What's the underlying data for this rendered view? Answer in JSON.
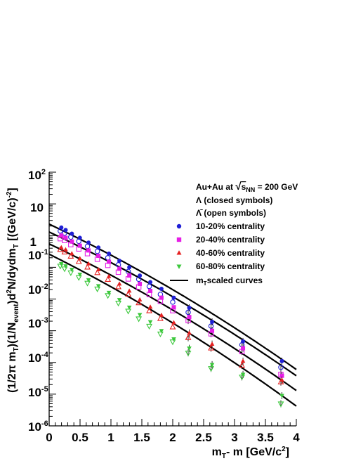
{
  "chart_data": {
    "type": "scatter",
    "xlabel": "m_T - m [GeV/c^2]",
    "ylabel": "(1/2π m_T)(1/N_event)d^2N/dydm_T [(GeV/c)^-2]",
    "xlim": [
      0,
      4
    ],
    "ylim": [
      1e-06,
      100
    ],
    "yscale": "log",
    "x_ticks": [
      "0",
      "0.5",
      "1",
      "1.5",
      "2",
      "2.5",
      "3",
      "3.5",
      "4"
    ],
    "y_ticks": [
      "10^-6",
      "10^-5",
      "10^-4",
      "10^-3",
      "10^-2",
      "10^-1",
      "1",
      "10",
      "10^2"
    ],
    "legend_position": "top-right",
    "legend": {
      "header": "Au+Au at √s_NN = 200 GeV",
      "lambda": "Λ (closed symbols)",
      "antilambda": "Λ̄ (open symbols)",
      "curves": "m_T scaled curves"
    },
    "x": [
      0.18,
      0.25,
      0.35,
      0.48,
      0.62,
      0.78,
      0.95,
      1.12,
      1.28,
      1.45,
      1.62,
      1.8,
      2.0,
      2.25,
      2.62,
      3.12,
      3.75
    ],
    "series": [
      {
        "name": "10-20% centrality",
        "color": "#1f1fd6",
        "marker": "circle",
        "lambda": [
          1.8,
          1.5,
          1.15,
          0.85,
          0.6,
          0.42,
          0.27,
          0.16,
          0.1,
          0.055,
          0.034,
          0.021,
          0.011,
          0.0053,
          0.0019,
          0.00046,
          0.00011
        ],
        "antilambda": [
          1.4,
          1.2,
          0.9,
          0.66,
          0.46,
          0.32,
          0.2,
          0.12,
          0.074,
          0.042,
          0.025,
          0.014,
          0.008,
          0.0038,
          0.0014,
          0.00036,
          7e-05
        ]
      },
      {
        "name": "20-40% centrality",
        "color": "#e61ee6",
        "marker": "square",
        "lambda": [
          1.0,
          0.85,
          0.65,
          0.48,
          0.34,
          0.23,
          0.15,
          0.09,
          0.055,
          0.03,
          0.018,
          0.011,
          0.0055,
          0.0027,
          0.001,
          0.00028,
          3.8e-05
        ],
        "antilambda": [
          0.8,
          0.7,
          0.52,
          0.38,
          0.27,
          0.18,
          0.115,
          0.07,
          0.043,
          0.024,
          0.014,
          0.0085,
          0.0043,
          0.0021,
          0.0008,
          0.00022,
          4.2e-05
        ]
      },
      {
        "name": "40-60% centrality",
        "color": "#e62020",
        "marker": "triangle",
        "lambda": [
          0.42,
          0.36,
          0.27,
          0.19,
          0.13,
          0.085,
          0.052,
          0.03,
          0.018,
          0.0095,
          0.0056,
          0.0031,
          0.0018,
          0.00085,
          0.00038,
          0.00011,
          2.8e-05
        ],
        "antilambda": [
          0.36,
          0.3,
          0.22,
          0.15,
          0.1,
          0.067,
          0.041,
          0.024,
          0.014,
          0.0075,
          0.0042,
          0.0024,
          0.0013,
          0.0006,
          0.00028,
          8e-05,
          2.4e-05
        ]
      },
      {
        "name": "60-80% centrality",
        "color": "#3cc83c",
        "marker": "triangle-down",
        "lambda": [
          0.13,
          0.11,
          0.085,
          0.06,
          0.04,
          0.026,
          0.016,
          0.0095,
          0.0055,
          0.0032,
          0.0019,
          0.001,
          0.00055,
          0.00028,
          8.5e-05,
          4.2e-05,
          9e-06
        ],
        "antilambda": [
          0.11,
          0.09,
          0.068,
          0.048,
          0.032,
          0.021,
          0.013,
          0.0075,
          0.0042,
          0.0024,
          0.0014,
          0.0008,
          0.00045,
          0.0002,
          6.5e-05,
          3.5e-05,
          5e-06
        ]
      }
    ],
    "curves": [
      {
        "y_at_x0": 2.3,
        "y_at_x4": 6e-05
      },
      {
        "y_at_x0": 1.3,
        "y_at_x4": 3.8e-05
      },
      {
        "y_at_x0": 0.55,
        "y_at_x4": 1.3e-05
      },
      {
        "y_at_x0": 0.26,
        "y_at_x4": 4.2e-06
      }
    ]
  }
}
